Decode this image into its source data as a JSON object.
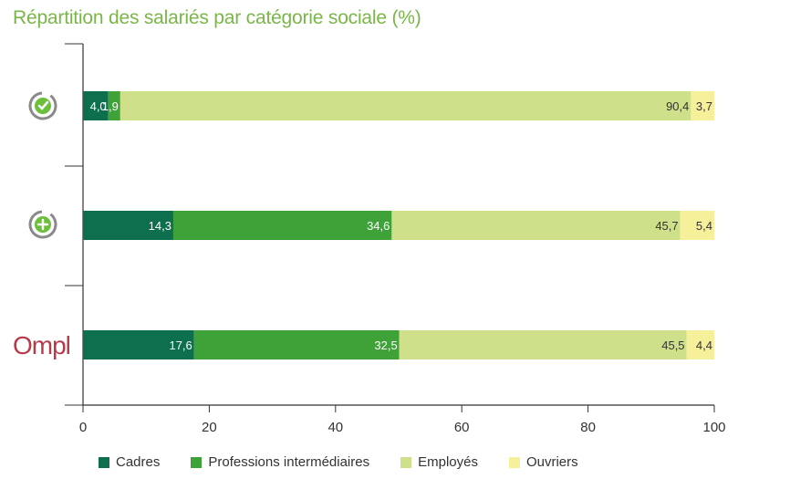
{
  "chart_data": {
    "type": "bar",
    "orientation": "horizontal",
    "stacked": true,
    "title": "Répartition des salariés par catégorie sociale (%)",
    "xlim": [
      0,
      100
    ],
    "x_ticks": [
      "0",
      "20",
      "40",
      "60",
      "80",
      "100"
    ],
    "y_categories": [
      "check-logo",
      "plus-logo",
      "Ompl"
    ],
    "legend_position": "bottom",
    "grid": false,
    "series": [
      {
        "name": "Cadres",
        "color": "#0e6f4f",
        "values": [
          4.0,
          14.3,
          17.6
        ],
        "labels": [
          "4,0",
          "14,3",
          "17,6"
        ]
      },
      {
        "name": "Professions intermédiaires",
        "color": "#3fa239",
        "values": [
          1.9,
          34.6,
          32.5
        ],
        "labels": [
          "1,9",
          "34,6",
          "32,5"
        ]
      },
      {
        "name": "Employés",
        "color": "#cfe08a",
        "values": [
          90.4,
          45.7,
          45.5
        ],
        "labels": [
          "90,4",
          "45,7",
          "45,5"
        ]
      },
      {
        "name": "Ouvriers",
        "color": "#f7f09a",
        "values": [
          3.7,
          5.4,
          4.4
        ],
        "labels": [
          "3,7",
          "5,4",
          "4,4"
        ]
      }
    ],
    "label_colors": [
      "#ffffff",
      "#ffffff",
      "#333333",
      "#333333"
    ]
  },
  "logos": {
    "row3_text": "Ompl",
    "row3_color": "#b83a4a",
    "ring_color": "#8a8a8a",
    "mark_color": "#6bbf3a"
  }
}
